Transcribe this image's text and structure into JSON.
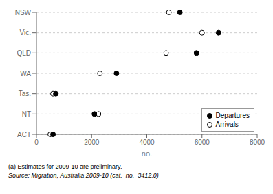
{
  "chart_data": {
    "type": "dot",
    "orientation": "horizontal",
    "categories": [
      "NSW",
      "Vic.",
      "QLD",
      "WA",
      "Tas.",
      "NT",
      "ACT"
    ],
    "series": [
      {
        "name": "Arrivals",
        "color": "#000000",
        "marker": "open_circle",
        "values": [
          4800,
          6000,
          4700,
          2300,
          600,
          2250,
          500
        ]
      },
      {
        "name": "Departures",
        "color": "#000000",
        "marker": "circle",
        "values": [
          5200,
          6600,
          5800,
          2900,
          700,
          2100,
          600
        ]
      }
    ],
    "xlabel": "no.",
    "xlim": [
      0,
      8000
    ],
    "xticks": [
      0,
      2000,
      4000,
      6000,
      8000
    ],
    "grid": true,
    "legend": "lower right",
    "annotations": [
      "(a) Estimates for 2009-10 are preliminary.",
      "Source: Migration, Australia 2009-10 (cat.  no.  3412.0)"
    ]
  }
}
